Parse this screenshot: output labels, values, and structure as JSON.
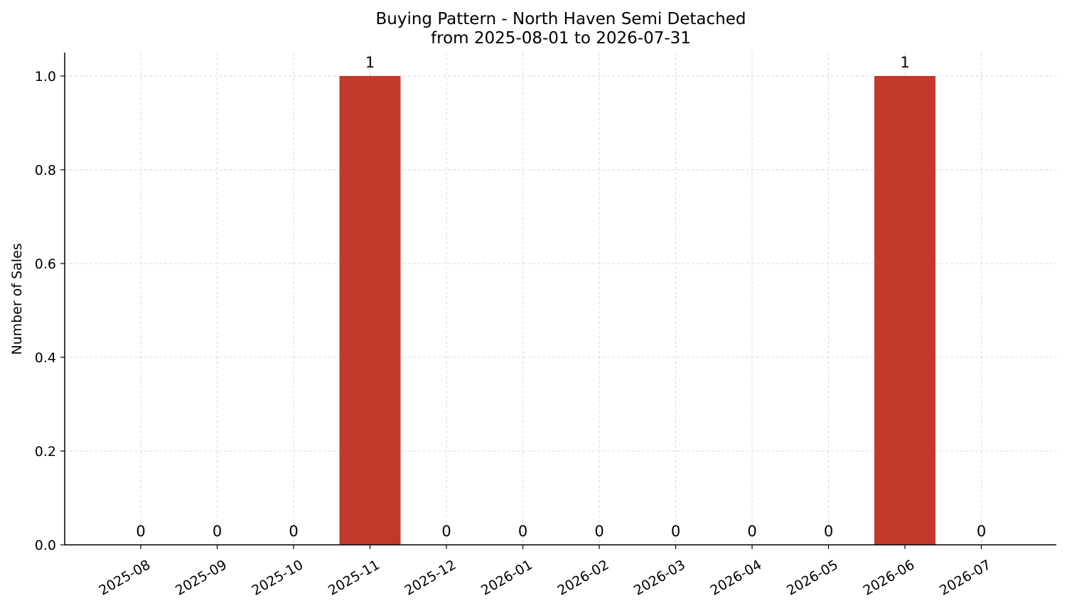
{
  "chart_data": {
    "type": "bar",
    "title": "Buying Pattern - North Haven Semi Detached",
    "subtitle": "from 2025-08-01 to 2026-07-31",
    "xlabel": "",
    "ylabel": "Number of Sales",
    "categories": [
      "2025-08",
      "2025-09",
      "2025-10",
      "2025-11",
      "2025-12",
      "2026-01",
      "2026-02",
      "2026-03",
      "2026-04",
      "2026-05",
      "2026-06",
      "2026-07"
    ],
    "values": [
      0,
      0,
      0,
      1,
      0,
      0,
      0,
      0,
      0,
      0,
      1,
      0
    ],
    "data_labels": [
      "0",
      "0",
      "0",
      "1",
      "0",
      "0",
      "0",
      "0",
      "0",
      "0",
      "1",
      "0"
    ],
    "ylim": [
      0,
      1.05
    ],
    "yticks": [
      0.0,
      0.2,
      0.4,
      0.6,
      0.8,
      1.0
    ],
    "ytick_labels": [
      "0.0",
      "0.2",
      "0.4",
      "0.6",
      "0.8",
      "1.0"
    ],
    "grid": true,
    "bar_color": "#c0392b",
    "grid_color": "#d9d9d9",
    "axis_color": "#000000"
  }
}
